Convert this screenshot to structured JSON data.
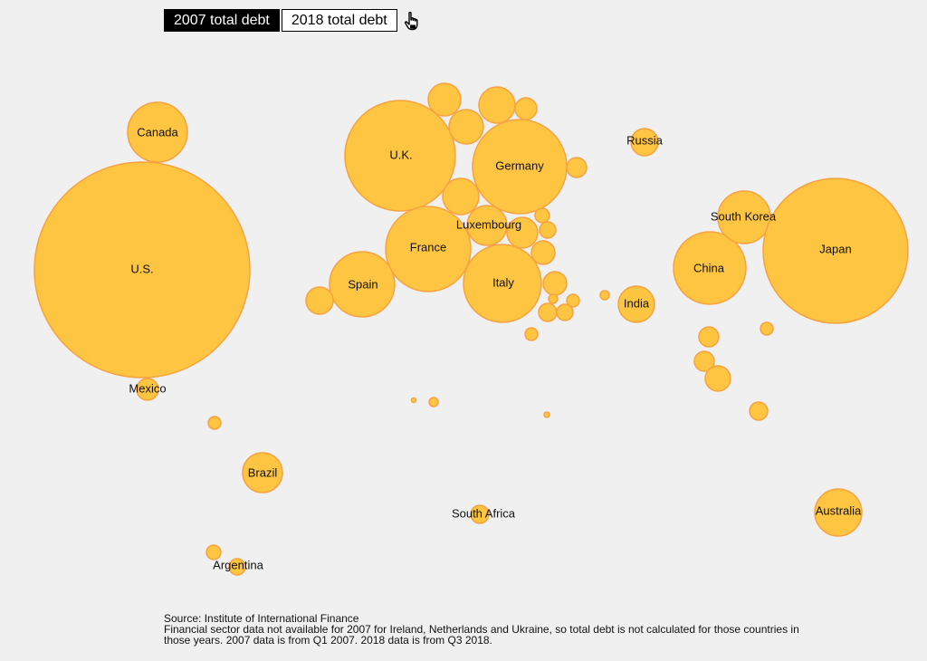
{
  "toggle": {
    "option_2007": "2007 total debt",
    "option_2018": "2018 total debt",
    "selected": "2007 total debt",
    "pointer_icon": "hand-pointer-icon"
  },
  "colors": {
    "bubble_fill": "#fec542",
    "bubble_stroke": "#f7a240",
    "background": "#f1f0f0"
  },
  "chart_data": {
    "type": "bubble-map",
    "selected_measure": "2007 total debt",
    "title": "",
    "labeled_countries": [
      "U.S.",
      "Canada",
      "Mexico",
      "Brazil",
      "Argentina",
      "U.K.",
      "Germany",
      "France",
      "Luxembourg",
      "Spain",
      "Italy",
      "Russia",
      "India",
      "China",
      "South Korea",
      "Japan",
      "South Africa",
      "Australia"
    ]
  },
  "footer": {
    "source": "Source: Institute of International Finance",
    "note": "Financial sector data not available for 2007 for Ireland, Netherlands and Ukraine, so total debt is not calculated for those countries in those years. 2007 data is from Q1 2007. 2018 data is from Q3 2018."
  }
}
